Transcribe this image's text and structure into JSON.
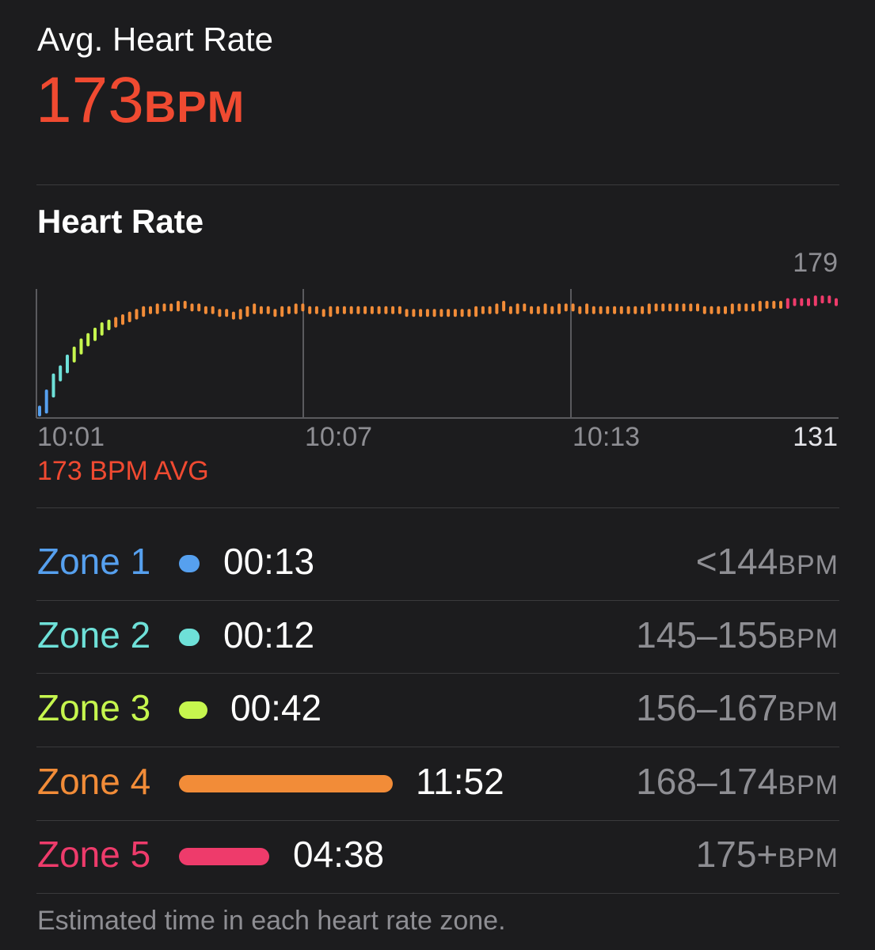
{
  "summary": {
    "label": "Avg. Heart Rate",
    "value": "173",
    "unit": "BPM",
    "color": "#f04a31"
  },
  "section_title": "Heart Rate",
  "chart_data": {
    "type": "bar",
    "title": "Heart Rate",
    "y_max_label": "179",
    "y_min_label": "131",
    "ylim": [
      131,
      179
    ],
    "x_tick_labels": [
      "10:01",
      "10:07",
      "10:13"
    ],
    "avg_caption": "173 BPM AVG",
    "series": [
      {
        "name": "Heart rate (BPM)",
        "values": [
          135,
          141,
          147,
          150,
          154,
          157,
          160,
          162,
          164,
          166,
          167,
          168,
          169,
          170,
          171,
          172,
          172,
          173,
          173,
          173,
          174,
          174,
          173,
          173,
          172,
          172,
          171,
          171,
          170,
          171,
          172,
          173,
          172,
          172,
          171,
          172,
          172,
          173,
          173,
          172,
          172,
          171,
          172,
          172,
          172,
          172,
          172,
          172,
          172,
          172,
          172,
          172,
          172,
          171,
          171,
          171,
          171,
          171,
          171,
          171,
          171,
          171,
          171,
          172,
          172,
          172,
          173,
          174,
          172,
          173,
          173,
          172,
          172,
          173,
          172,
          173,
          173,
          173,
          172,
          173,
          172,
          172,
          172,
          172,
          172,
          172,
          172,
          172,
          173,
          173,
          173,
          173,
          173,
          173,
          173,
          173,
          172,
          172,
          172,
          172,
          173,
          173,
          173,
          173,
          174,
          174,
          174,
          174,
          175,
          175,
          175,
          175,
          176,
          176,
          176,
          175
        ]
      }
    ],
    "zone_colors": [
      "#56a0ef",
      "#6ee0d8",
      "#c6f64e",
      "#f28c38",
      "#ee3b6b"
    ]
  },
  "zones": [
    {
      "name": "Zone 1",
      "time": "00:13",
      "range": "<144",
      "unit": "BPM",
      "color": "#56a0ef",
      "seconds": 13
    },
    {
      "name": "Zone 2",
      "time": "00:12",
      "range": "145–155",
      "unit": "BPM",
      "color": "#6ee0d8",
      "seconds": 12
    },
    {
      "name": "Zone 3",
      "time": "00:42",
      "range": "156–167",
      "unit": "BPM",
      "color": "#c6f64e",
      "seconds": 42
    },
    {
      "name": "Zone 4",
      "time": "11:52",
      "range": "168–174",
      "unit": "BPM",
      "color": "#f28c38",
      "seconds": 712
    },
    {
      "name": "Zone 5",
      "time": "04:38",
      "range": "175+",
      "unit": "BPM",
      "color": "#ee3b6b",
      "seconds": 278
    }
  ],
  "footnote": "Estimated time in each heart rate zone."
}
